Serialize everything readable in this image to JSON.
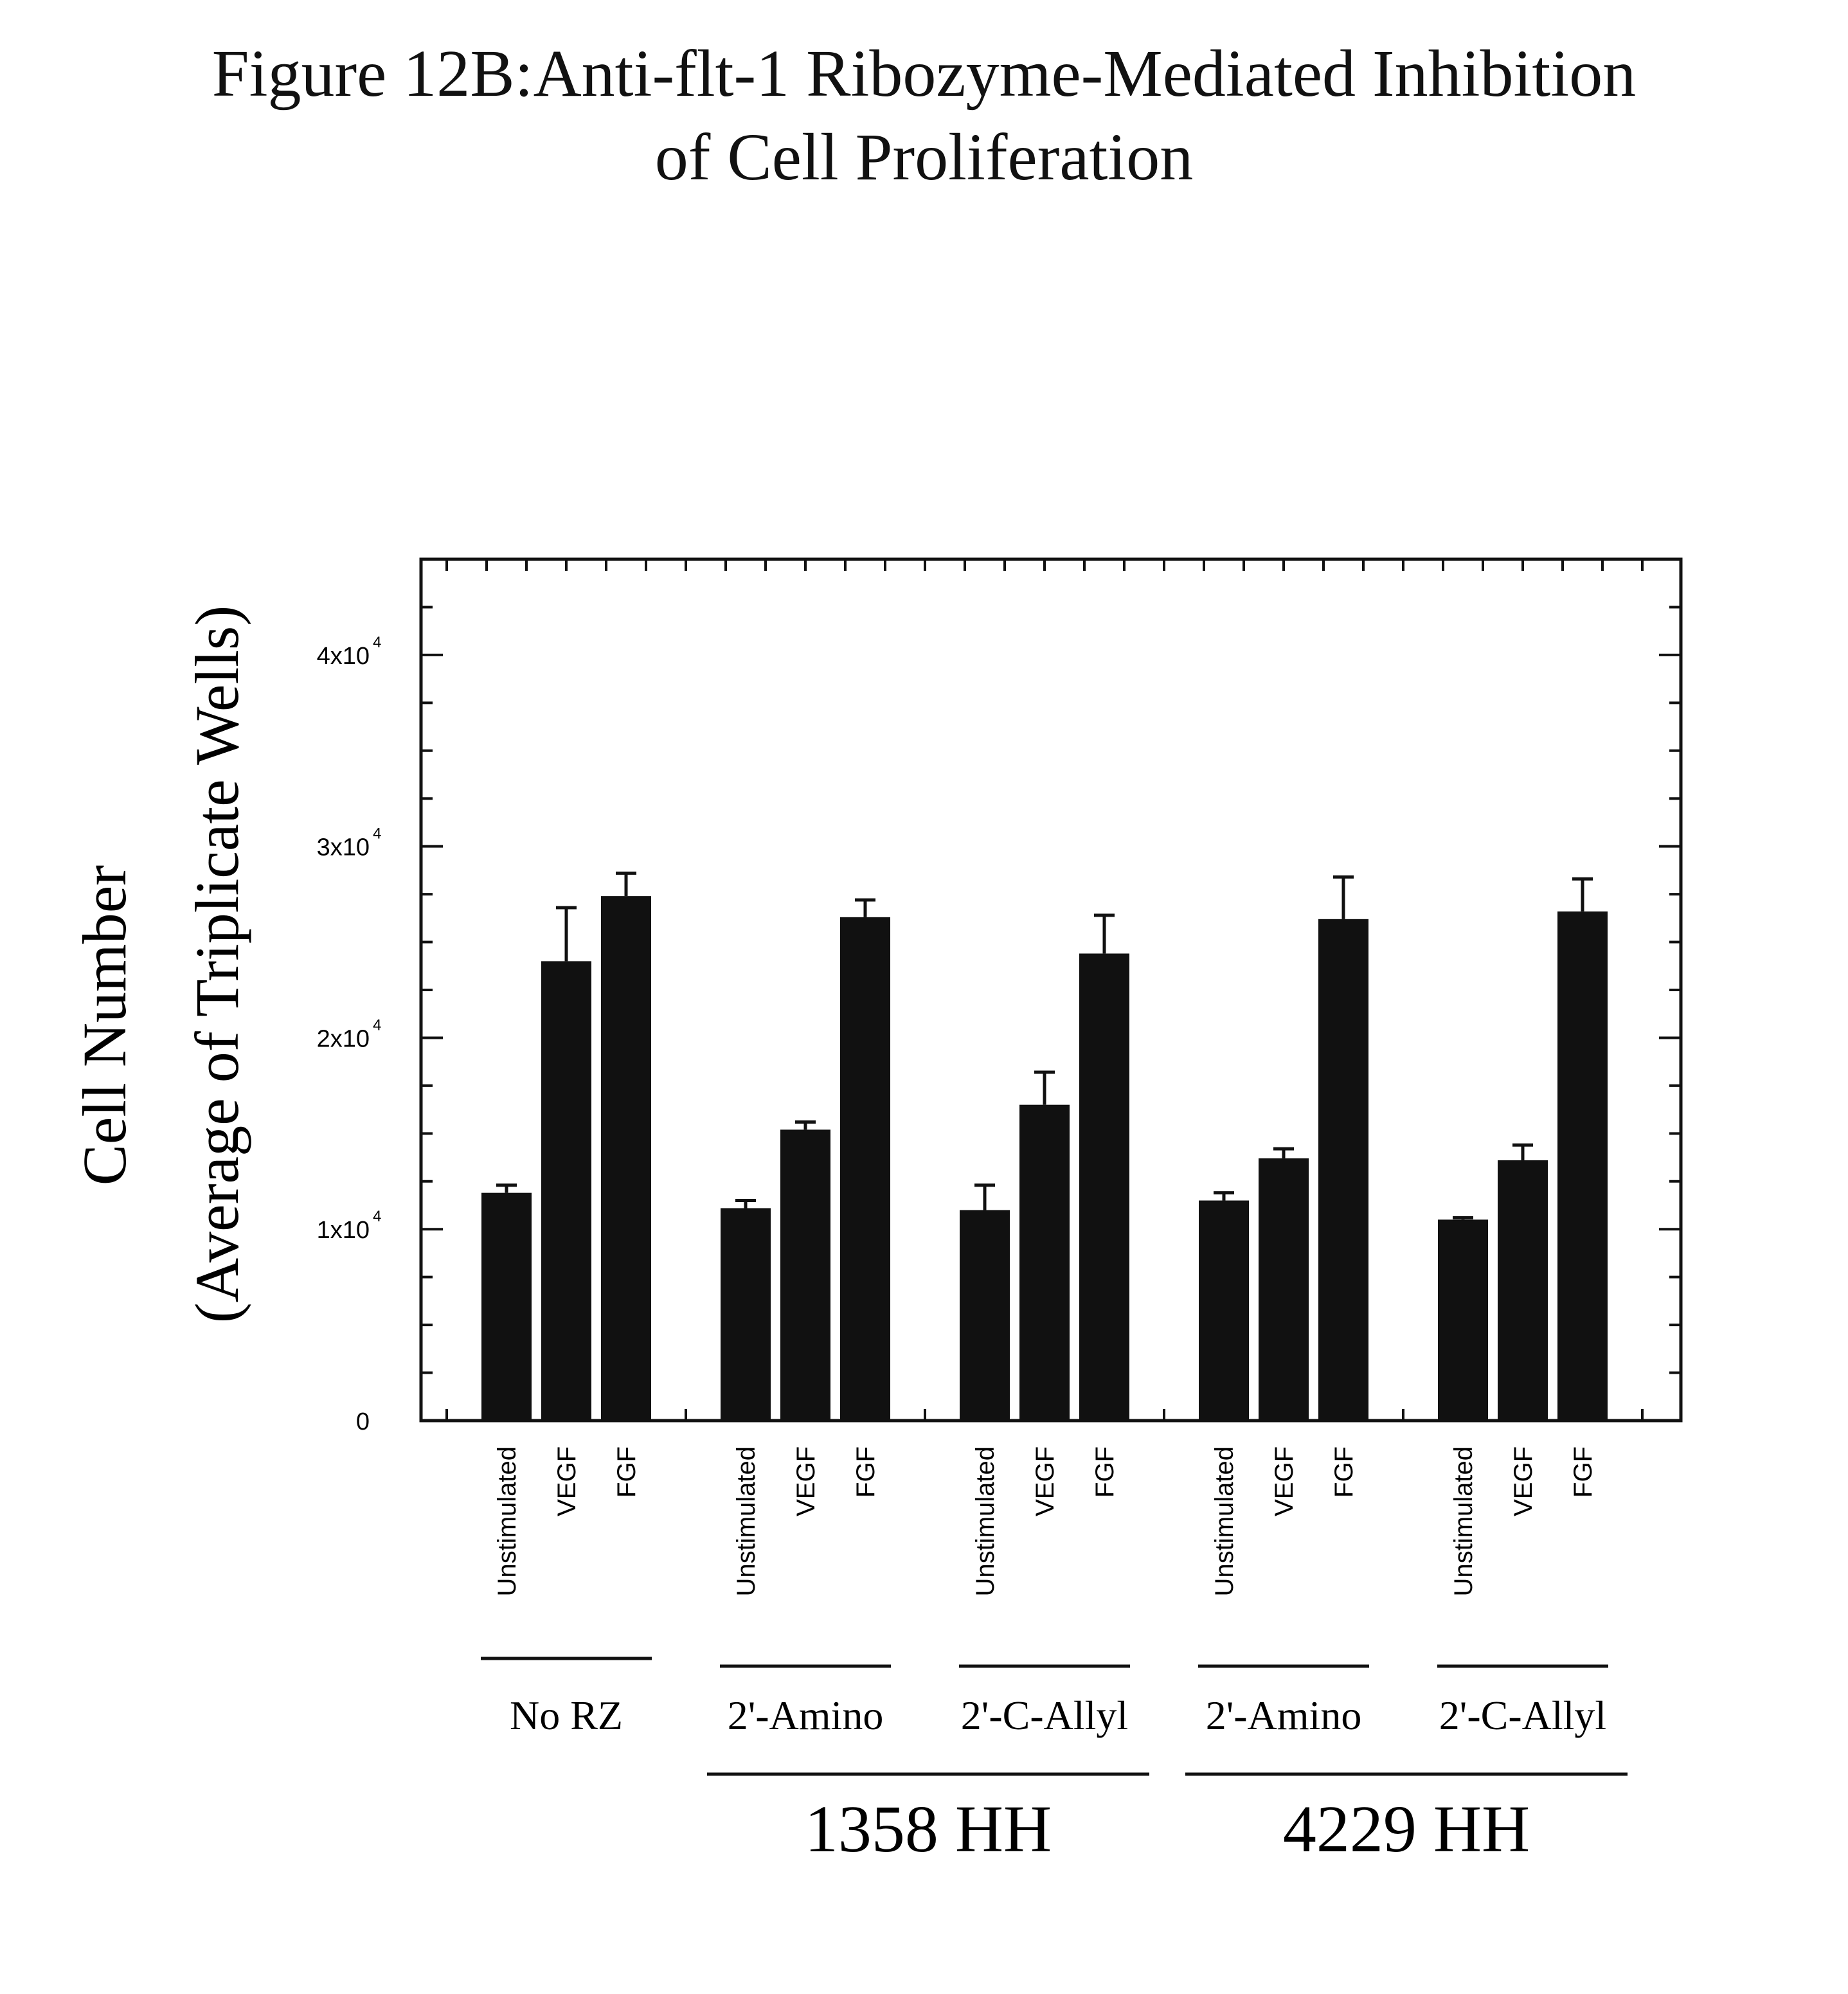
{
  "title_line1": "Figure 12B:Anti-flt-1 Ribozyme-Mediated Inhibition",
  "title_line2": "of Cell Proliferation",
  "chart_data": {
    "type": "bar",
    "ylabel_line1": "Cell Number",
    "ylabel_line2": "(Average of Triplicate Wells)",
    "ylim": [
      0,
      45000
    ],
    "yticks": [
      0,
      10000,
      20000,
      30000,
      40000
    ],
    "ytick_labels": [
      "0",
      "1x10",
      "2x10",
      "3x10",
      "4x10"
    ],
    "ytick_exponent": "4",
    "bar_color": "#111111",
    "categories": [
      "Unstimulated",
      "VEGF",
      "FGF",
      "Unstimulated",
      "VEGF",
      "FGF",
      "Unstimulated",
      "VEGF",
      "FGF",
      "Unstimulated",
      "VEGF",
      "FGF",
      "Unstimulated",
      "VEGF",
      "FGF"
    ],
    "values": [
      11900,
      24000,
      27400,
      11100,
      15200,
      26300,
      11000,
      16500,
      24400,
      11500,
      13700,
      26200,
      10500,
      13600,
      26600
    ],
    "errors": [
      400,
      2800,
      1200,
      400,
      400,
      900,
      1300,
      1700,
      2000,
      400,
      500,
      2200,
      100,
      800,
      1700
    ],
    "groups": [
      {
        "label": "No RZ",
        "bars": [
          0,
          1,
          2
        ]
      },
      {
        "label": "2'-Amino",
        "bars": [
          3,
          4,
          5
        ]
      },
      {
        "label": "2'-C-Allyl",
        "bars": [
          6,
          7,
          8
        ]
      },
      {
        "label": "2'-Amino",
        "bars": [
          9,
          10,
          11
        ]
      },
      {
        "label": "2'-C-Allyl",
        "bars": [
          12,
          13,
          14
        ]
      }
    ],
    "supergroups": [
      {
        "label": "1358 HH",
        "groups": [
          1,
          2
        ]
      },
      {
        "label": "4229 HH",
        "groups": [
          3,
          4
        ]
      }
    ]
  }
}
